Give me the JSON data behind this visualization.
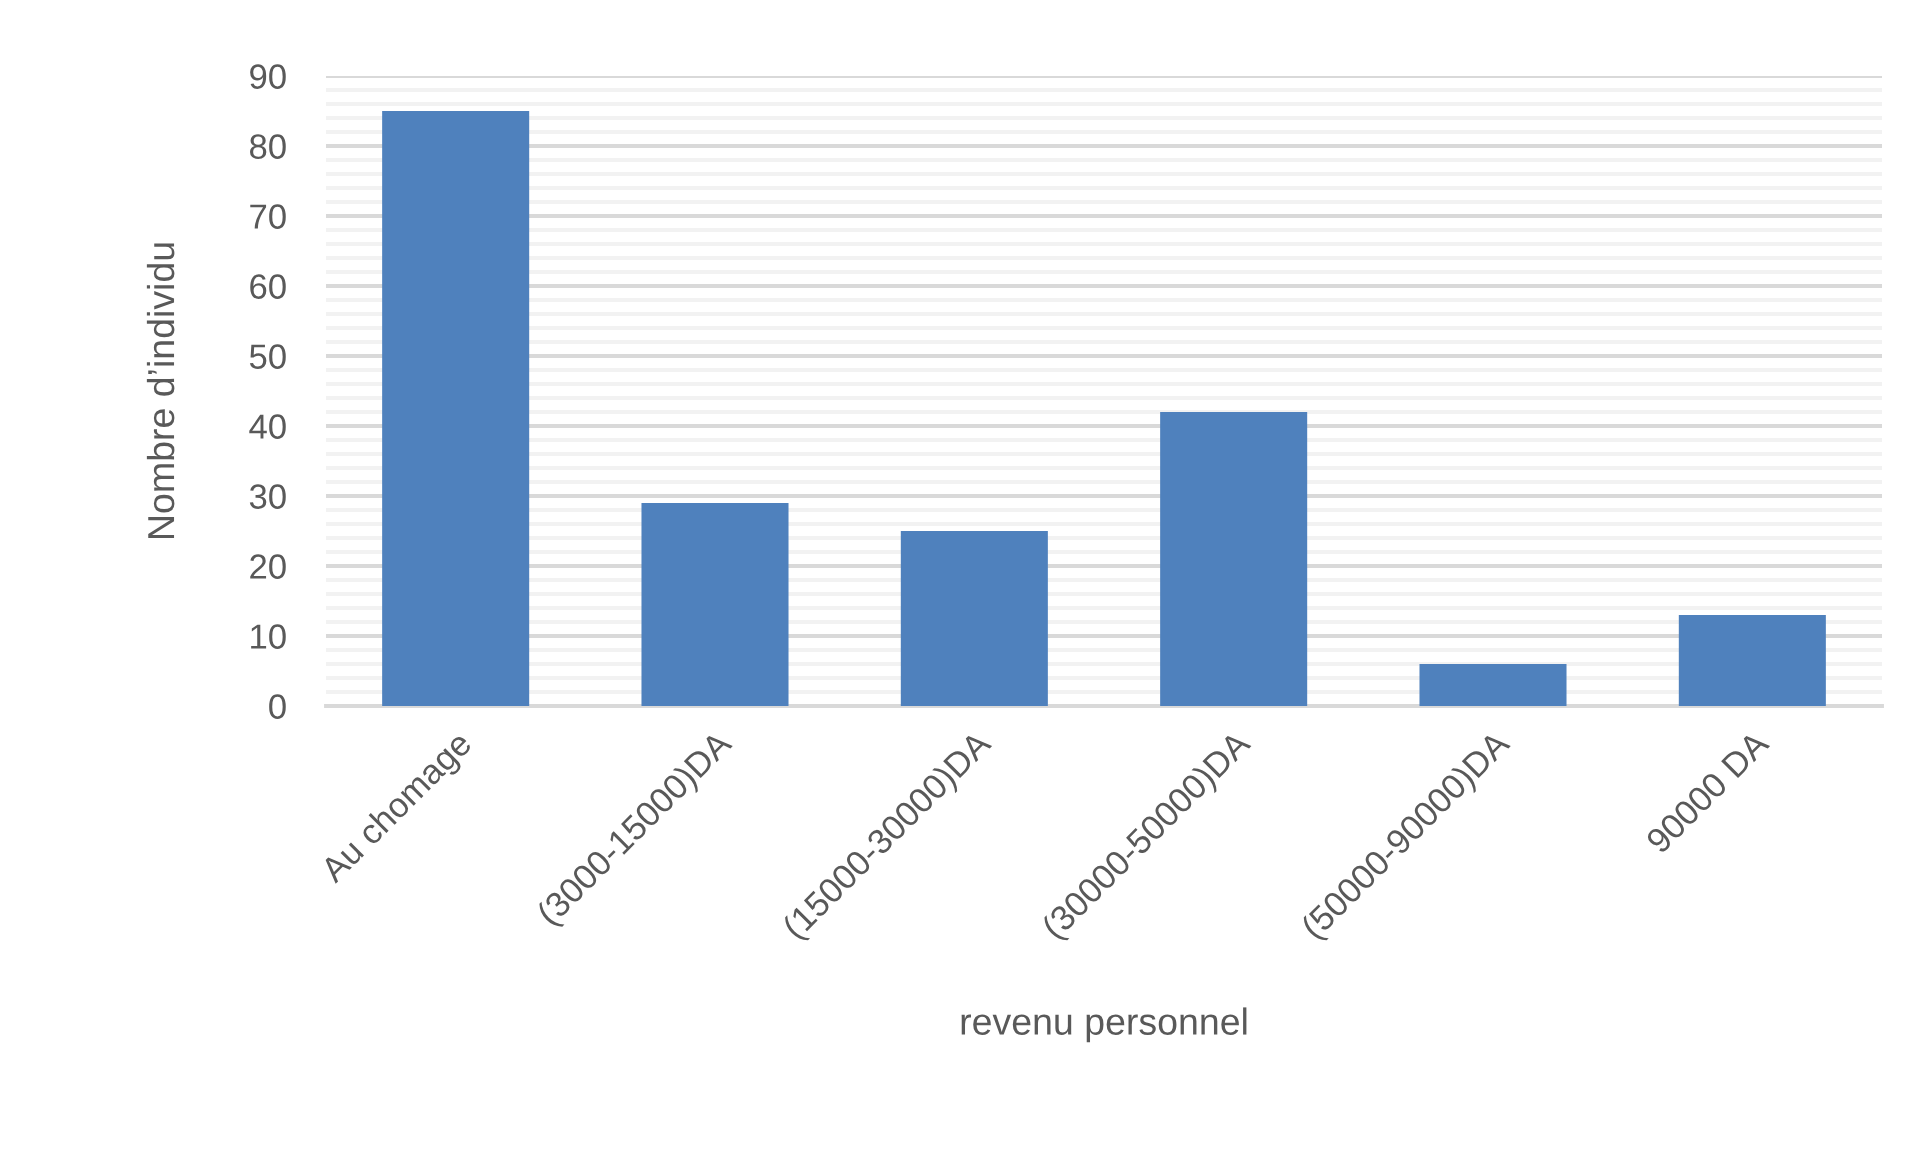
{
  "chart_data": {
    "type": "bar",
    "xlabel": "revenu personnel",
    "ylabel": "Nombre d’individu",
    "categories": [
      "Au chomage",
      "(3000-15000)DA",
      "(15000-30000)DA",
      "(30000-50000)DA",
      "(50000-90000)DA",
      "90000 DA"
    ],
    "values": [
      85,
      29,
      25,
      42,
      6,
      13
    ],
    "color": "#4f81bd",
    "ylim": [
      0,
      90
    ],
    "yticks": [
      0,
      {
        "value": 2,
        "label": null
      },
      {
        "value": 4,
        "label": null
      },
      {
        "value": 6,
        "label": null
      },
      {
        "value": 8,
        "label": null
      },
      10,
      {
        "value": 12,
        "label": null
      },
      {
        "value": 14,
        "label": null
      },
      {
        "value": 16,
        "label": null
      },
      {
        "value": 18,
        "label": null
      },
      20,
      {
        "value": 22,
        "label": null
      },
      {
        "value": 24,
        "label": null
      },
      {
        "value": 26,
        "label": null
      },
      {
        "value": 28,
        "label": null
      },
      30,
      {
        "value": 32,
        "label": null
      },
      {
        "value": 34,
        "label": null
      },
      {
        "value": 36,
        "label": null
      },
      {
        "value": 38,
        "label": null
      },
      40,
      {
        "value": 42,
        "label": null
      },
      {
        "value": 44,
        "label": null
      },
      {
        "value": 46,
        "label": null
      },
      {
        "value": 48,
        "label": null
      },
      50,
      {
        "value": 52,
        "label": null
      },
      {
        "value": 54,
        "label": null
      },
      {
        "value": 56,
        "label": null
      },
      {
        "value": 58,
        "label": null
      },
      60,
      {
        "value": 62,
        "label": null
      },
      {
        "value": 64,
        "label": null
      },
      {
        "value": 66,
        "label": null
      },
      {
        "value": 68,
        "label": null
      },
      70,
      {
        "value": 72,
        "label": null
      },
      {
        "value": 74,
        "label": null
      },
      {
        "value": 76,
        "label": null
      },
      {
        "value": 78,
        "label": null
      },
      80,
      {
        "value": 82,
        "label": null
      },
      {
        "value": 84,
        "label": null
      },
      {
        "value": 86,
        "label": null
      },
      {
        "value": 88,
        "label": null
      },
      90
    ],
    "grid": "y"
  }
}
